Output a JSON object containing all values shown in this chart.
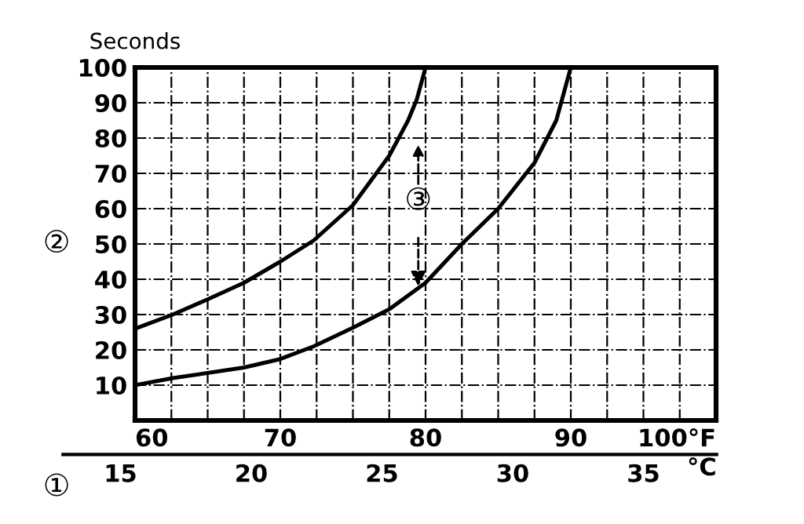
{
  "chart_data": {
    "type": "line",
    "ylabel": "Seconds",
    "xlim": [
      60,
      100
    ],
    "ylim": [
      0,
      100
    ],
    "xticks": [
      60,
      {
        "value": 62.5,
        "label": null
      },
      {
        "value": 65,
        "label": null
      },
      {
        "value": 67.5,
        "label": null
      },
      70,
      {
        "value": 72.5,
        "label": null
      },
      {
        "value": 75,
        "label": null
      },
      {
        "value": 77.5,
        "label": null
      },
      80,
      {
        "value": 82.5,
        "label": null
      },
      {
        "value": 85,
        "label": null
      },
      {
        "value": 87.5,
        "label": null
      },
      90,
      {
        "value": 92.5,
        "label": null
      },
      {
        "value": 95,
        "label": null
      },
      {
        "value": 97.5,
        "label": null
      },
      {
        "value": 100,
        "label": "100°F"
      }
    ],
    "yticks": [
      10,
      20,
      30,
      40,
      50,
      60,
      70,
      80,
      90,
      100
    ],
    "x2lim": [
      12.8,
      37.8
    ],
    "x2ticks": [
      15,
      20,
      25,
      30,
      35
    ],
    "x2label": "°C",
    "grid": true,
    "marker": "none",
    "line_style": "solid",
    "series": [
      {
        "color": "#000000",
        "x": [
          60,
          62.6,
          65.1,
          67.5,
          70,
          72.3,
          75,
          77.5,
          78.8,
          79.4,
          80
        ],
        "values": [
          26,
          30,
          34.5,
          39,
          45,
          51,
          61,
          75,
          85,
          91,
          100
        ]
      },
      {
        "color": "#000000",
        "x": [
          60,
          62.6,
          67.5,
          70,
          72.3,
          75,
          77.5,
          80,
          82.5,
          85,
          87.5,
          89,
          90
        ],
        "values": [
          10,
          12,
          15,
          17.4,
          21,
          26.3,
          31.5,
          39,
          50,
          60,
          73,
          85,
          100
        ]
      }
    ],
    "annotations": [
      "①",
      "②",
      {
        "text": "③",
        "x": 79.5,
        "y": 38
      }
    ]
  }
}
